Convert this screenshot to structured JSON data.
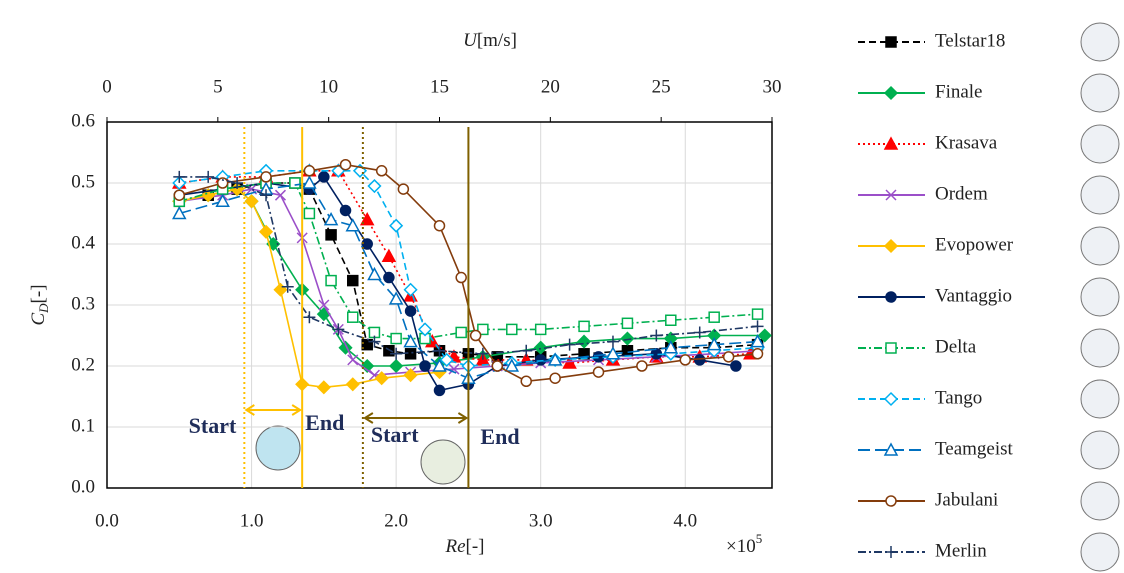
{
  "chart_data": {
    "type": "line",
    "x_label": {
      "symbol": "Re",
      "unit": "[-]"
    },
    "x_multiplier": {
      "base": "×10",
      "exponent": "5"
    },
    "y_label": {
      "symbol": "C",
      "subscript": "D",
      "unit": "[-]"
    },
    "x2_label": {
      "symbol": "U",
      "unit": "[m/s]"
    },
    "xlim": [
      0,
      4.6
    ],
    "xticks": [
      {
        "value": 0,
        "label": "0.0"
      },
      {
        "value": 1,
        "label": "1.0"
      },
      {
        "value": 2,
        "label": "2.0"
      },
      {
        "value": 3,
        "label": "3.0"
      },
      {
        "value": 4,
        "label": "4.0"
      }
    ],
    "x2lim": [
      0,
      30
    ],
    "x2ticks": [
      0,
      5,
      10,
      15,
      20,
      25,
      30
    ],
    "ylim": [
      0,
      0.6
    ],
    "yticks": [
      {
        "value": 0,
        "label": "0.0"
      },
      {
        "value": 0.1,
        "label": "0.1"
      },
      {
        "value": 0.2,
        "label": "0.2"
      },
      {
        "value": 0.3,
        "label": "0.3"
      },
      {
        "value": 0.4,
        "label": "0.4"
      },
      {
        "value": 0.5,
        "label": "0.5"
      },
      {
        "value": 0.6,
        "label": "0.6"
      }
    ],
    "grid": true,
    "legend": "right",
    "series": [
      {
        "name": "Telstar18",
        "color": "#000000",
        "marker": "square",
        "filled": true,
        "dash": "dash",
        "x": [
          0.5,
          0.7,
          0.9,
          1.1,
          1.3,
          1.4,
          1.55,
          1.7,
          1.8,
          1.95,
          2.1,
          2.3,
          2.5,
          2.7,
          3.0,
          3.3,
          3.6,
          3.9,
          4.2,
          4.5
        ],
        "values": [
          0.47,
          0.48,
          0.49,
          0.5,
          0.5,
          0.49,
          0.415,
          0.34,
          0.235,
          0.225,
          0.22,
          0.225,
          0.22,
          0.215,
          0.215,
          0.22,
          0.225,
          0.23,
          0.23,
          0.235
        ]
      },
      {
        "name": "Finale",
        "color": "#00b050",
        "marker": "diamond",
        "filled": true,
        "dash": "solid",
        "x": [
          0.5,
          0.7,
          0.9,
          1.0,
          1.15,
          1.35,
          1.5,
          1.65,
          1.8,
          2.0,
          2.3,
          2.6,
          3.0,
          3.3,
          3.6,
          3.9,
          4.2,
          4.55
        ],
        "values": [
          0.47,
          0.48,
          0.49,
          0.47,
          0.4,
          0.325,
          0.285,
          0.23,
          0.2,
          0.2,
          0.205,
          0.215,
          0.23,
          0.24,
          0.245,
          0.245,
          0.25,
          0.25
        ]
      },
      {
        "name": "Krasava",
        "color": "#ff0000",
        "marker": "triangle",
        "filled": true,
        "dash": "dot",
        "x": [
          0.5,
          0.8,
          1.1,
          1.4,
          1.6,
          1.8,
          1.95,
          2.1,
          2.25,
          2.4,
          2.6,
          2.9,
          3.2,
          3.5,
          3.8,
          4.1,
          4.45
        ],
        "values": [
          0.5,
          0.51,
          0.51,
          0.52,
          0.52,
          0.44,
          0.38,
          0.315,
          0.24,
          0.215,
          0.21,
          0.21,
          0.205,
          0.21,
          0.215,
          0.215,
          0.22
        ]
      },
      {
        "name": "Ordem",
        "color": "#9b4fc9",
        "marker": "x",
        "filled": true,
        "dash": "solid",
        "x": [
          0.5,
          0.8,
          1.0,
          1.2,
          1.35,
          1.5,
          1.6,
          1.7,
          1.85,
          2.1,
          2.4,
          2.7,
          3.0,
          3.4,
          3.8,
          4.2,
          4.5
        ],
        "values": [
          0.47,
          0.48,
          0.49,
          0.48,
          0.41,
          0.3,
          0.26,
          0.21,
          0.185,
          0.19,
          0.195,
          0.2,
          0.205,
          0.21,
          0.215,
          0.22,
          0.225
        ]
      },
      {
        "name": "Evopower",
        "color": "#ffc000",
        "marker": "diamond",
        "filled": true,
        "dash": "solid",
        "x": [
          0.5,
          0.7,
          0.9,
          1.0,
          1.1,
          1.2,
          1.35,
          1.5,
          1.7,
          1.9,
          2.1,
          2.3
        ],
        "values": [
          0.47,
          0.48,
          0.49,
          0.47,
          0.42,
          0.325,
          0.17,
          0.165,
          0.17,
          0.18,
          0.185,
          0.19
        ]
      },
      {
        "name": "Vantaggio",
        "color": "#002060",
        "marker": "circle",
        "filled": true,
        "dash": "solid",
        "x": [
          0.5,
          0.8,
          1.1,
          1.4,
          1.5,
          1.65,
          1.8,
          1.95,
          2.1,
          2.2,
          2.3,
          2.5,
          2.7,
          3.0,
          3.4,
          3.8,
          4.1,
          4.35
        ],
        "values": [
          0.48,
          0.49,
          0.5,
          0.49,
          0.51,
          0.455,
          0.4,
          0.345,
          0.29,
          0.2,
          0.16,
          0.17,
          0.2,
          0.21,
          0.215,
          0.22,
          0.21,
          0.2
        ]
      },
      {
        "name": "Delta",
        "color": "#00b050",
        "marker": "square",
        "filled": false,
        "dash": "dashdot",
        "x": [
          0.5,
          0.8,
          1.1,
          1.3,
          1.4,
          1.55,
          1.7,
          1.85,
          2.0,
          2.2,
          2.45,
          2.6,
          2.8,
          3.0,
          3.3,
          3.6,
          3.9,
          4.2,
          4.5
        ],
        "values": [
          0.47,
          0.49,
          0.5,
          0.5,
          0.45,
          0.34,
          0.28,
          0.255,
          0.245,
          0.245,
          0.255,
          0.26,
          0.26,
          0.26,
          0.265,
          0.27,
          0.275,
          0.28,
          0.285
        ]
      },
      {
        "name": "Tango",
        "color": "#00b0f0",
        "marker": "diamond",
        "filled": false,
        "dash": "dash",
        "x": [
          0.5,
          0.8,
          1.1,
          1.4,
          1.6,
          1.75,
          1.85,
          2.0,
          2.1,
          2.2,
          2.35,
          2.5,
          2.8,
          3.1,
          3.5,
          3.9,
          4.2,
          4.5
        ],
        "values": [
          0.5,
          0.51,
          0.52,
          0.52,
          0.52,
          0.52,
          0.495,
          0.43,
          0.325,
          0.26,
          0.21,
          0.2,
          0.205,
          0.21,
          0.215,
          0.22,
          0.225,
          0.23
        ]
      },
      {
        "name": "Teamgeist",
        "color": "#0070c0",
        "marker": "triangle",
        "filled": false,
        "dash": "longdash",
        "x": [
          0.5,
          0.8,
          1.1,
          1.4,
          1.55,
          1.7,
          1.85,
          2.0,
          2.1,
          2.3,
          2.5,
          2.8,
          3.1,
          3.5,
          3.9,
          4.2,
          4.5
        ],
        "values": [
          0.45,
          0.47,
          0.49,
          0.5,
          0.44,
          0.43,
          0.35,
          0.31,
          0.24,
          0.2,
          0.18,
          0.2,
          0.21,
          0.22,
          0.23,
          0.235,
          0.24
        ]
      },
      {
        "name": "Jabulani",
        "color": "#843c0c",
        "marker": "circle",
        "filled": false,
        "dash": "solid",
        "x": [
          0.5,
          0.8,
          1.1,
          1.4,
          1.65,
          1.9,
          2.05,
          2.3,
          2.45,
          2.55,
          2.7,
          2.9,
          3.1,
          3.4,
          3.7,
          4.0,
          4.3,
          4.5
        ],
        "values": [
          0.48,
          0.5,
          0.51,
          0.52,
          0.53,
          0.52,
          0.49,
          0.43,
          0.345,
          0.25,
          0.2,
          0.175,
          0.18,
          0.19,
          0.2,
          0.21,
          0.215,
          0.22
        ]
      },
      {
        "name": "Merlin",
        "color": "#1f3864",
        "marker": "plus",
        "filled": true,
        "dash": "dashdot",
        "x": [
          0.5,
          0.7,
          0.9,
          1.1,
          1.25,
          1.4,
          1.6,
          1.85,
          2.0,
          2.3,
          2.6,
          2.9,
          3.2,
          3.5,
          3.8,
          4.1,
          4.5
        ],
        "values": [
          0.51,
          0.51,
          0.5,
          0.48,
          0.33,
          0.28,
          0.26,
          0.24,
          0.22,
          0.225,
          0.22,
          0.225,
          0.235,
          0.24,
          0.25,
          0.255,
          0.265
        ]
      }
    ],
    "reference_lines": [
      {
        "x": 0.95,
        "color": "#ffc000",
        "style": "dotted"
      },
      {
        "x": 1.35,
        "color": "#ffc000",
        "style": "solid"
      },
      {
        "x": 1.77,
        "color": "#7f6000",
        "style": "dotted"
      },
      {
        "x": 2.5,
        "color": "#7f6000",
        "style": "solid"
      }
    ],
    "annotations": [
      "Start",
      "End",
      "Start",
      "End"
    ]
  }
}
